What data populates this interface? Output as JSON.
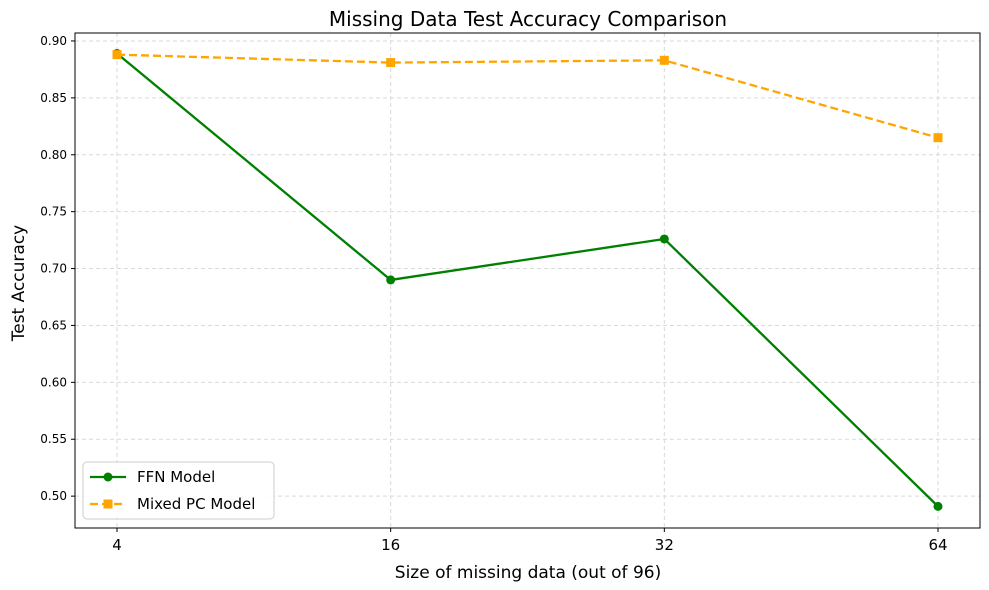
{
  "chart_data": {
    "type": "line",
    "title": "Missing Data Test Accuracy Comparison",
    "xlabel": "Size of missing data (out of 96)",
    "ylabel": "Test Accuracy",
    "categories": [
      "4",
      "16",
      "32",
      "64"
    ],
    "ylim": [
      0.472,
      0.907
    ],
    "yticks": [
      0.5,
      0.55,
      0.6,
      0.65,
      0.7,
      0.75,
      0.8,
      0.85,
      0.9
    ],
    "grid": true,
    "legend_position": "lower-left",
    "series": [
      {
        "name": "FFN Model",
        "values": [
          0.889,
          0.69,
          0.726,
          0.491
        ],
        "color": "#008000",
        "marker": "circle",
        "linestyle": "solid"
      },
      {
        "name": "Mixed PC Model",
        "values": [
          0.888,
          0.881,
          0.883,
          0.815
        ],
        "color": "#ffa500",
        "marker": "square",
        "linestyle": "dashed"
      }
    ]
  }
}
